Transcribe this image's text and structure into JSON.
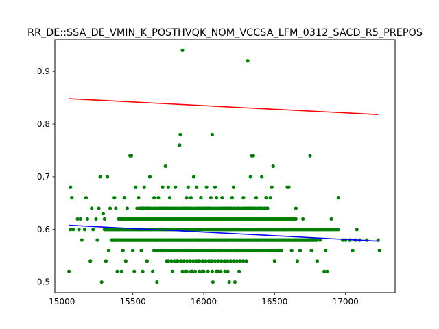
{
  "chart_data": {
    "type": "scatter",
    "title": "RR_DE::SSA_DE_VMIN_K_POSTHVQK_NOM_VCCSA_LFM_0312_SACD_R5_PREPOS",
    "xlabel": "",
    "ylabel": "",
    "xlim": [
      14950,
      17350
    ],
    "ylim": [
      0.48,
      0.96
    ],
    "xticks": [
      15000,
      15500,
      16000,
      16500,
      17000
    ],
    "yticks": [
      0.5,
      0.6,
      0.7,
      0.8,
      0.9
    ],
    "xtick_labels": [
      "15000",
      "15500",
      "16000",
      "16500",
      "17000"
    ],
    "ytick_labels": [
      "0.5",
      "0.6",
      "0.7",
      "0.8",
      "0.9"
    ],
    "grid": false,
    "legend": "none",
    "colors": {
      "points": "#008000",
      "upper_line": "#ff0000",
      "trend_line": "#0000ff"
    },
    "series": [
      {
        "kind": "scatter",
        "color": "#008000",
        "points": [
          [
            15050,
            0.52
          ],
          [
            15060,
            0.6
          ],
          [
            15060,
            0.68
          ],
          [
            15070,
            0.66
          ],
          [
            15080,
            0.6
          ],
          [
            15110,
            0.62
          ],
          [
            15120,
            0.6
          ],
          [
            15130,
            0.62
          ],
          [
            15140,
            0.58
          ],
          [
            15160,
            0.6
          ],
          [
            15170,
            0.66
          ],
          [
            15180,
            0.62
          ],
          [
            15200,
            0.54
          ],
          [
            15210,
            0.64
          ],
          [
            15220,
            0.6
          ],
          [
            15240,
            0.62
          ],
          [
            15250,
            0.58
          ],
          [
            15260,
            0.64
          ],
          [
            15270,
            0.7
          ],
          [
            15280,
            0.5
          ],
          [
            15290,
            0.63
          ],
          [
            15300,
            0.62
          ],
          [
            15310,
            0.54
          ],
          [
            15320,
            0.7
          ],
          [
            15330,
            0.56
          ],
          [
            15340,
            0.64
          ],
          [
            15360,
            0.58
          ],
          [
            15370,
            0.66
          ],
          [
            15380,
            0.64
          ],
          [
            15390,
            0.52
          ],
          [
            15400,
            0.6
          ],
          [
            15420,
            0.52
          ],
          [
            15430,
            0.56
          ],
          [
            15440,
            0.66
          ],
          [
            15450,
            0.54
          ],
          [
            15460,
            0.64
          ],
          [
            15470,
            0.62
          ],
          [
            15480,
            0.74
          ],
          [
            15490,
            0.74
          ],
          [
            15500,
            0.56
          ],
          [
            15510,
            0.52
          ],
          [
            15520,
            0.68
          ],
          [
            15530,
            0.64
          ],
          [
            15540,
            0.66
          ],
          [
            15550,
            0.6
          ],
          [
            15560,
            0.56
          ],
          [
            15570,
            0.52
          ],
          [
            15580,
            0.68
          ],
          [
            15600,
            0.54
          ],
          [
            15610,
            0.64
          ],
          [
            15620,
            0.7
          ],
          [
            15630,
            0.6
          ],
          [
            15640,
            0.52
          ],
          [
            15650,
            0.66
          ],
          [
            15660,
            0.58
          ],
          [
            15670,
            0.5
          ],
          [
            15680,
            0.66
          ],
          [
            15690,
            0.64
          ],
          [
            15700,
            0.56
          ],
          [
            15710,
            0.68
          ],
          [
            15720,
            0.64
          ],
          [
            15730,
            0.72
          ],
          [
            15740,
            0.54
          ],
          [
            15750,
            0.68
          ],
          [
            15760,
            0.66
          ],
          [
            15770,
            0.58
          ],
          [
            15780,
            0.52
          ],
          [
            15790,
            0.62
          ],
          [
            15800,
            0.68
          ],
          [
            15810,
            0.54
          ],
          [
            15820,
            0.58
          ],
          [
            15830,
            0.76
          ],
          [
            15835,
            0.78
          ],
          [
            15840,
            0.54
          ],
          [
            15850,
            0.94
          ],
          [
            15860,
            0.6
          ],
          [
            15870,
            0.52
          ],
          [
            15880,
            0.66
          ],
          [
            15890,
            0.68
          ],
          [
            15900,
            0.56
          ],
          [
            15910,
            0.66
          ],
          [
            15920,
            0.52
          ],
          [
            15930,
            0.7
          ],
          [
            15940,
            0.6
          ],
          [
            15950,
            0.68
          ],
          [
            15960,
            0.54
          ],
          [
            15970,
            0.58
          ],
          [
            15980,
            0.66
          ],
          [
            15990,
            0.52
          ],
          [
            16000,
            0.62
          ],
          [
            16010,
            0.56
          ],
          [
            16020,
            0.68
          ],
          [
            16030,
            0.64
          ],
          [
            16040,
            0.54
          ],
          [
            16050,
            0.66
          ],
          [
            16060,
            0.78
          ],
          [
            16065,
            0.5
          ],
          [
            16070,
            0.58
          ],
          [
            16080,
            0.68
          ],
          [
            16090,
            0.66
          ],
          [
            16100,
            0.52
          ],
          [
            16110,
            0.64
          ],
          [
            16120,
            0.56
          ],
          [
            16130,
            0.66
          ],
          [
            16140,
            0.62
          ],
          [
            16150,
            0.58
          ],
          [
            16160,
            0.64
          ],
          [
            16170,
            0.52
          ],
          [
            16180,
            0.5
          ],
          [
            16190,
            0.54
          ],
          [
            16200,
            0.66
          ],
          [
            16210,
            0.68
          ],
          [
            16220,
            0.5
          ],
          [
            16230,
            0.56
          ],
          [
            16240,
            0.64
          ],
          [
            16250,
            0.52
          ],
          [
            16260,
            0.58
          ],
          [
            16280,
            0.66
          ],
          [
            16300,
            0.54
          ],
          [
            16310,
            0.92
          ],
          [
            16320,
            0.64
          ],
          [
            16330,
            0.7
          ],
          [
            16340,
            0.74
          ],
          [
            16350,
            0.74
          ],
          [
            16360,
            0.62
          ],
          [
            16370,
            0.66
          ],
          [
            16380,
            0.58
          ],
          [
            16390,
            0.56
          ],
          [
            16400,
            0.64
          ],
          [
            16410,
            0.7
          ],
          [
            16420,
            0.6
          ],
          [
            16440,
            0.66
          ],
          [
            16450,
            0.64
          ],
          [
            16460,
            0.56
          ],
          [
            16470,
            0.66
          ],
          [
            16480,
            0.68
          ],
          [
            16490,
            0.72
          ],
          [
            16500,
            0.54
          ],
          [
            16520,
            0.62
          ],
          [
            16540,
            0.56
          ],
          [
            16560,
            0.6
          ],
          [
            16570,
            0.58
          ],
          [
            16590,
            0.68
          ],
          [
            16600,
            0.68
          ],
          [
            16620,
            0.56
          ],
          [
            16640,
            0.58
          ],
          [
            16650,
            0.64
          ],
          [
            16660,
            0.54
          ],
          [
            16680,
            0.56
          ],
          [
            16700,
            0.62
          ],
          [
            16720,
            0.58
          ],
          [
            16750,
            0.74
          ],
          [
            16760,
            0.56
          ],
          [
            16790,
            0.6
          ],
          [
            16800,
            0.54
          ],
          [
            16820,
            0.58
          ],
          [
            16850,
            0.52
          ],
          [
            16860,
            0.56
          ],
          [
            16870,
            0.52
          ],
          [
            16900,
            0.62
          ],
          [
            16950,
            0.66
          ],
          [
            16980,
            0.58
          ],
          [
            17000,
            0.58
          ],
          [
            17030,
            0.58
          ],
          [
            17050,
            0.56
          ],
          [
            17070,
            0.58
          ],
          [
            17080,
            0.6
          ],
          [
            17100,
            0.58
          ],
          [
            17150,
            0.58
          ],
          [
            17230,
            0.58
          ],
          [
            17240,
            0.56
          ]
        ],
        "dense_bands": [
          {
            "y": 0.58,
            "x_range": [
              15350,
              16800
            ],
            "step": 8
          },
          {
            "y": 0.6,
            "x_range": [
              15300,
              16950
            ],
            "step": 8
          },
          {
            "y": 0.62,
            "x_range": [
              15400,
              16650
            ],
            "step": 10
          },
          {
            "y": 0.64,
            "x_range": [
              15550,
              16450
            ],
            "step": 14
          },
          {
            "y": 0.56,
            "x_range": [
              15650,
              16550
            ],
            "step": 14
          },
          {
            "y": 0.54,
            "x_range": [
              15750,
              16300
            ],
            "step": 22
          },
          {
            "y": 0.52,
            "x_range": [
              15850,
              16150
            ],
            "step": 30
          }
        ]
      },
      {
        "kind": "line",
        "color": "#ff0000",
        "x": [
          15050,
          17230
        ],
        "y": [
          0.848,
          0.818
        ]
      },
      {
        "kind": "line",
        "color": "#0000ff",
        "x": [
          15050,
          17230
        ],
        "y": [
          0.608,
          0.578
        ]
      }
    ]
  }
}
